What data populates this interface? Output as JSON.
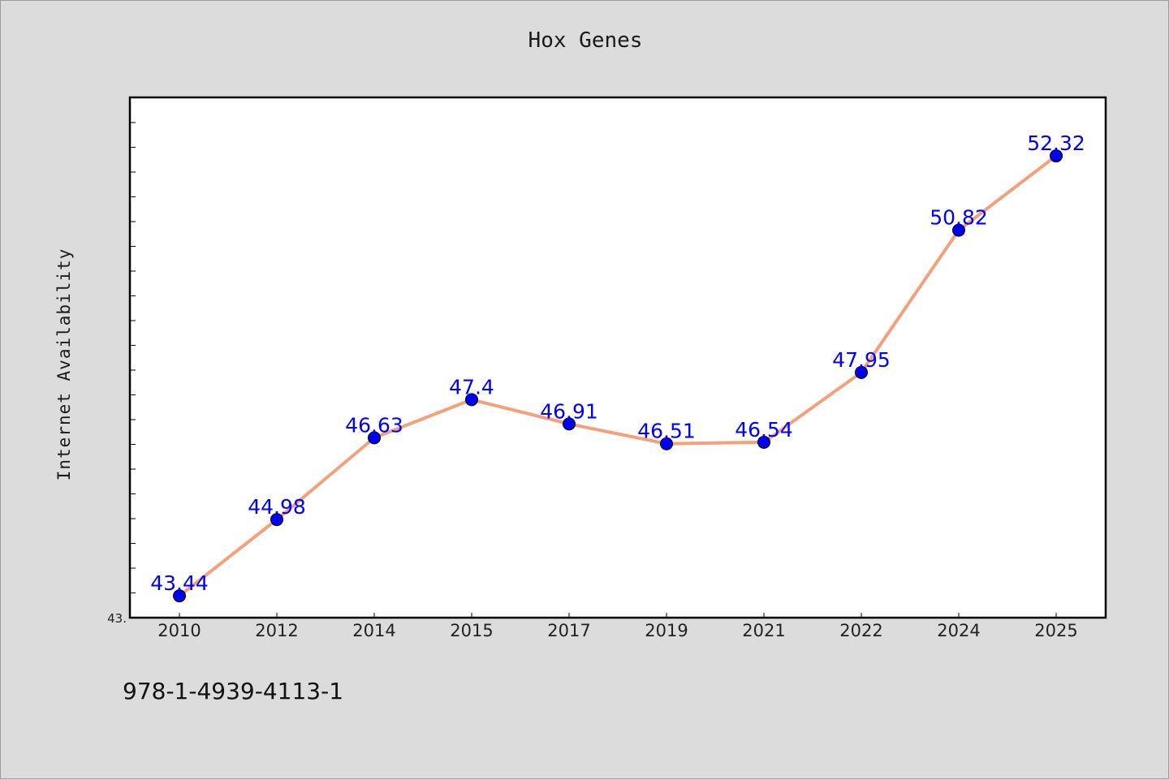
{
  "chart_data": {
    "type": "line",
    "title": "Hox Genes",
    "xlabel": "",
    "ylabel": "Internet Availability",
    "categories": [
      "2010",
      "2012",
      "2014",
      "2015",
      "2017",
      "2019",
      "2021",
      "2022",
      "2024",
      "2025"
    ],
    "values": [
      43.44,
      44.98,
      46.63,
      47.4,
      46.91,
      46.51,
      46.54,
      47.95,
      50.82,
      52.32
    ],
    "data_labels": [
      "43.44",
      "44.98",
      "46.63",
      "47.4",
      "46.91",
      "46.51",
      "46.54",
      "47.95",
      "50.82",
      "52.32"
    ],
    "y_tick_labels": [
      "43."
    ],
    "ylim": [
      43.0,
      53.5
    ],
    "grid": false,
    "line_color": "#f4a07a",
    "marker_color": "#0000ee",
    "label_color": "#0000ff"
  },
  "footer": "978-1-4939-4113-1"
}
